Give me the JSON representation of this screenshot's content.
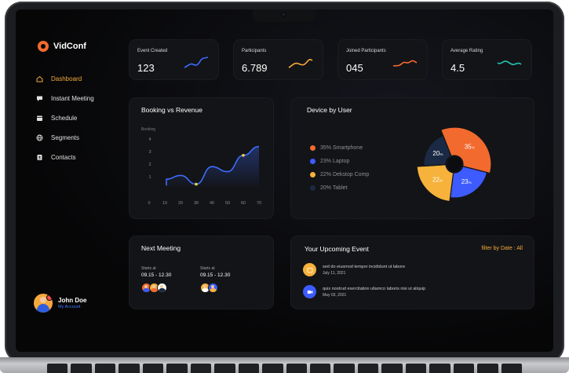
{
  "app": {
    "name": "VidConf"
  },
  "sidebar": {
    "items": [
      {
        "label": "Dashboard",
        "icon": "home-icon",
        "active": true
      },
      {
        "label": "Instant Meeting",
        "icon": "chat-icon",
        "active": false
      },
      {
        "label": "Schedule",
        "icon": "calendar-icon",
        "active": false
      },
      {
        "label": "Segments",
        "icon": "globe-icon",
        "active": false
      },
      {
        "label": "Contacts",
        "icon": "contact-book-icon",
        "active": false
      }
    ],
    "user": {
      "name": "John Doe",
      "subtitle": "My Account"
    }
  },
  "stats": [
    {
      "label": "Event Created",
      "value": "123",
      "spark_color": "#3d6bff"
    },
    {
      "label": "Participants",
      "value": "6.789",
      "spark_color": "#f6a93b"
    },
    {
      "label": "Joined Participants",
      "value": "045",
      "spark_color": "#f26a2e"
    },
    {
      "label": "Average Rating",
      "value": "4.5",
      "spark_color": "#22c3b5"
    }
  ],
  "booking": {
    "title": "Booking vs Revenue",
    "chart_data": {
      "type": "line",
      "ylabel": "Booking",
      "x": [
        0,
        10,
        20,
        30,
        40,
        50,
        60,
        70
      ],
      "yticks": [
        1,
        2,
        3,
        4
      ],
      "xlim": [
        0,
        70
      ],
      "ylim": [
        0,
        4
      ],
      "series": [
        {
          "values": [
            0.3,
            0.8,
            1.1,
            0.4,
            1.8,
            1.4,
            2.7,
            3.4
          ]
        }
      ],
      "highlights": [
        {
          "x": 30,
          "y": 0.4
        },
        {
          "x": 60,
          "y": 2.7
        }
      ],
      "line_color": "#3d6bff",
      "highlight_color": "#f6d53b"
    }
  },
  "device": {
    "title": "Device by User",
    "chart_data": {
      "type": "pie",
      "labels": [
        "Smartphone",
        "Laptop",
        "Dekstop Comp",
        "Tablet"
      ],
      "legend": [
        "35% Smartphone",
        "23% Laptop",
        "22% Dekstop Comp",
        "20% Tablet"
      ],
      "values": [
        35,
        23,
        22,
        20
      ],
      "slice_labels": [
        "35",
        "23",
        "22",
        "20"
      ],
      "unit": "%",
      "colors": [
        "#f26a2e",
        "#3d5bff",
        "#f6b23b",
        "#1a2a44"
      ]
    }
  },
  "meeting": {
    "title": "Next Meeting",
    "items": [
      {
        "label": "Starts at",
        "time": "09.15 - 12.30"
      },
      {
        "label": "Starts at",
        "time": "09.15 - 12.30"
      }
    ]
  },
  "events": {
    "title": "Your Upcoming Event",
    "filter_label": "filter by Date : All",
    "items": [
      {
        "title": "sed do eiusmod tempor incididunt ut labore",
        "date": "July 11, 2021",
        "icon": "calendar-icon",
        "color": "#f6b23b"
      },
      {
        "title": "quis nostrud exercitation ullamco laboris nisi ut aliquip",
        "date": "May 03, 2021",
        "icon": "video-icon",
        "color": "#3d5bff"
      }
    ]
  }
}
